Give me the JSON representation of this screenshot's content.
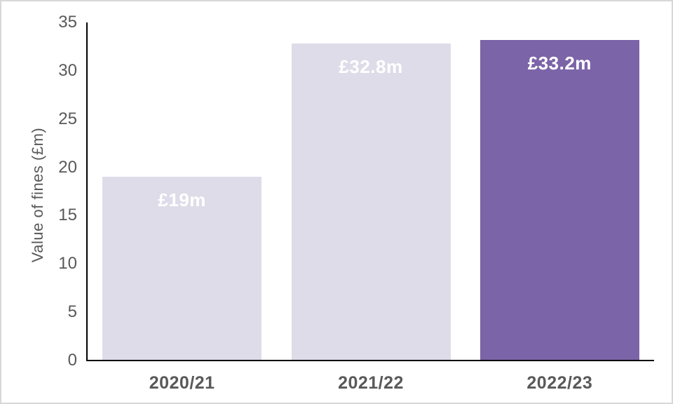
{
  "chart_data": {
    "type": "bar",
    "title": "",
    "categories": [
      "2020/21",
      "2021/22",
      "2022/23"
    ],
    "values": [
      19,
      32.8,
      33.2
    ],
    "data_labels": [
      "£19m",
      "£32.8m",
      "£33.2m"
    ],
    "xlabel": "",
    "ylabel": "Value of fines (£m)",
    "ylim": [
      0,
      35
    ],
    "yticks": [
      0,
      5,
      10,
      15,
      20,
      25,
      30,
      35
    ],
    "grid": false,
    "legend": "none",
    "bar_colors": [
      "#DFDCE9",
      "#DFDCE9",
      "#7C64A8"
    ]
  },
  "colors": {
    "bar_light": "#DFDCE9",
    "bar_accent": "#7C64A8",
    "axis_text": "#595959",
    "axis_line": "#000000",
    "data_label_text": "#FFFFFF",
    "frame_border": "#D8D8D8",
    "background": "#FFFFFF"
  }
}
